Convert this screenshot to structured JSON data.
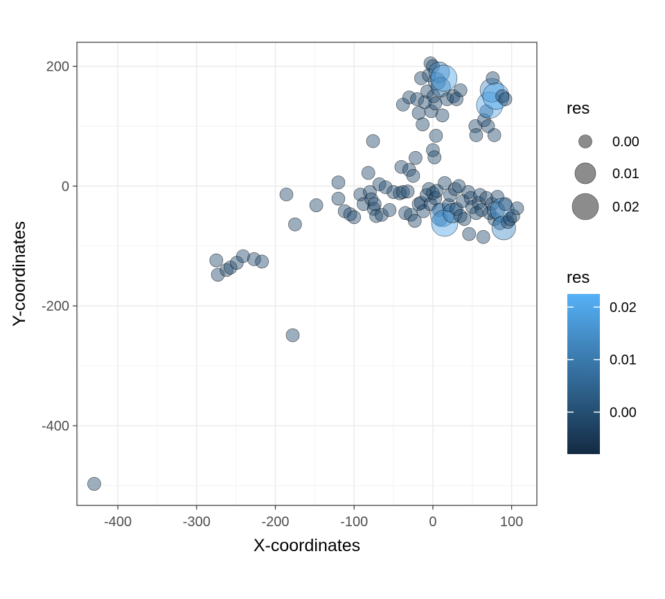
{
  "chart_data": {
    "type": "scatter",
    "title": "",
    "xlabel": "X-coordinates",
    "ylabel": "Y-coordinates",
    "xlim": [
      -452,
      132
    ],
    "ylim": [
      -533,
      240
    ],
    "x_ticks": [
      "-400",
      "-300",
      "-200",
      "-100",
      "0",
      "100"
    ],
    "y_ticks": [
      "200",
      "0",
      "-200",
      "-400"
    ],
    "grid": true,
    "theme": "bw",
    "size_legend": {
      "title": "res",
      "entries": [
        {
          "label": "0.00",
          "value": 0.0
        },
        {
          "label": "0.01",
          "value": 0.01
        },
        {
          "label": "0.02",
          "value": 0.02
        }
      ]
    },
    "color_legend": {
      "title": "res",
      "labels": [
        "0.02",
        "0.01",
        "0.00"
      ],
      "label_values": [
        0.02,
        0.01,
        0.0
      ],
      "range": [
        -0.008,
        0.0225
      ],
      "low_color": "#132B43",
      "high_color": "#56B1F7"
    },
    "point_fill_opacity": 0.45,
    "point_stroke": "#000000",
    "points": [
      {
        "x": -430,
        "y": -497,
        "res": 0.0
      },
      {
        "x": -178,
        "y": -249,
        "res": 0.0
      },
      {
        "x": -273,
        "y": -148,
        "res": 0.0
      },
      {
        "x": -275,
        "y": -124,
        "res": 0.0
      },
      {
        "x": -262,
        "y": -140,
        "res": 0.0
      },
      {
        "x": -257,
        "y": -136,
        "res": 0.0
      },
      {
        "x": -249,
        "y": -128,
        "res": 0.0
      },
      {
        "x": -241,
        "y": -117,
        "res": 0.0
      },
      {
        "x": -227,
        "y": -122,
        "res": 0.0
      },
      {
        "x": -217,
        "y": -126,
        "res": 0.0
      },
      {
        "x": -186,
        "y": -14,
        "res": 0.0
      },
      {
        "x": -175,
        "y": -64,
        "res": 0.0
      },
      {
        "x": -148,
        "y": -32,
        "res": 0.0
      },
      {
        "x": -120,
        "y": 6,
        "res": 0.0
      },
      {
        "x": -120,
        "y": -21,
        "res": 0.0
      },
      {
        "x": -112,
        "y": -42,
        "res": 0.0
      },
      {
        "x": -105,
        "y": -47,
        "res": 0.0
      },
      {
        "x": -100,
        "y": -52,
        "res": 0.0
      },
      {
        "x": -92,
        "y": -14,
        "res": 0.0
      },
      {
        "x": -88,
        "y": -30,
        "res": 0.0
      },
      {
        "x": -82,
        "y": 22,
        "res": 0.0
      },
      {
        "x": -80,
        "y": -10,
        "res": 0.0
      },
      {
        "x": -78,
        "y": -22,
        "res": 0.0
      },
      {
        "x": -76,
        "y": 75,
        "res": 0.0
      },
      {
        "x": -75,
        "y": -38,
        "res": 0.0
      },
      {
        "x": -74,
        "y": -30,
        "res": 0.0
      },
      {
        "x": -72,
        "y": -50,
        "res": 0.0
      },
      {
        "x": -68,
        "y": 3,
        "res": 0.0
      },
      {
        "x": -65,
        "y": -48,
        "res": 0.0
      },
      {
        "x": -60,
        "y": -2,
        "res": 0.0
      },
      {
        "x": -55,
        "y": -40,
        "res": 0.0
      },
      {
        "x": -50,
        "y": -10,
        "res": 0.0
      },
      {
        "x": -42,
        "y": -12,
        "res": 0.0
      },
      {
        "x": -40,
        "y": 32,
        "res": 0.0
      },
      {
        "x": -38,
        "y": -10,
        "res": 0.0
      },
      {
        "x": -35,
        "y": -45,
        "res": 0.0
      },
      {
        "x": -32,
        "y": -9,
        "res": 0.0
      },
      {
        "x": -30,
        "y": 27,
        "res": 0.0
      },
      {
        "x": -28,
        "y": -48,
        "res": 0.0
      },
      {
        "x": -25,
        "y": 17,
        "res": 0.0
      },
      {
        "x": -23,
        "y": -58,
        "res": 0.0
      },
      {
        "x": -22,
        "y": 47,
        "res": 0.0
      },
      {
        "x": -38,
        "y": 136,
        "res": 0.0
      },
      {
        "x": -30,
        "y": 148,
        "res": 0.0
      },
      {
        "x": -20,
        "y": 145,
        "res": 0.0
      },
      {
        "x": -18,
        "y": 122,
        "res": 0.0
      },
      {
        "x": -15,
        "y": 180,
        "res": 0.0
      },
      {
        "x": -13,
        "y": 103,
        "res": 0.0
      },
      {
        "x": -10,
        "y": 140,
        "res": 0.0
      },
      {
        "x": -7,
        "y": 158,
        "res": 0.0
      },
      {
        "x": -5,
        "y": 185,
        "res": 0.0
      },
      {
        "x": -3,
        "y": 205,
        "res": 0.0
      },
      {
        "x": -2,
        "y": 125,
        "res": 0.0
      },
      {
        "x": 0,
        "y": 200,
        "res": 0.0
      },
      {
        "x": 1,
        "y": 150,
        "res": 0.0
      },
      {
        "x": 3,
        "y": 138,
        "res": 0.0
      },
      {
        "x": 4,
        "y": 84,
        "res": 0.0
      },
      {
        "x": 5,
        "y": 175,
        "res": 0.005
      },
      {
        "x": 8,
        "y": 190,
        "res": 0.01
      },
      {
        "x": 10,
        "y": 165,
        "res": 0.008
      },
      {
        "x": 12,
        "y": 118,
        "res": 0.0
      },
      {
        "x": 14,
        "y": 180,
        "res": 0.02
      },
      {
        "x": 18,
        "y": 145,
        "res": 0.0
      },
      {
        "x": 0,
        "y": 60,
        "res": 0.0
      },
      {
        "x": 2,
        "y": 48,
        "res": 0.0
      },
      {
        "x": -18,
        "y": -30,
        "res": 0.0
      },
      {
        "x": -15,
        "y": -28,
        "res": 0.0
      },
      {
        "x": -12,
        "y": -42,
        "res": 0.0
      },
      {
        "x": -8,
        "y": -15,
        "res": 0.0
      },
      {
        "x": -5,
        "y": -5,
        "res": 0.0
      },
      {
        "x": -3,
        "y": -30,
        "res": 0.0
      },
      {
        "x": 0,
        "y": -12,
        "res": 0.0
      },
      {
        "x": 3,
        "y": -20,
        "res": 0.0
      },
      {
        "x": 5,
        "y": -8,
        "res": 0.0
      },
      {
        "x": 8,
        "y": -40,
        "res": 0.0
      },
      {
        "x": 10,
        "y": -55,
        "res": 0.0
      },
      {
        "x": 12,
        "y": -48,
        "res": 0.015
      },
      {
        "x": 15,
        "y": 5,
        "res": 0.0
      },
      {
        "x": 15,
        "y": -62,
        "res": 0.02
      },
      {
        "x": 20,
        "y": -32,
        "res": 0.0
      },
      {
        "x": 22,
        "y": -15,
        "res": 0.0
      },
      {
        "x": 25,
        "y": -45,
        "res": 0.008
      },
      {
        "x": 28,
        "y": -5,
        "res": 0.0
      },
      {
        "x": 30,
        "y": -38,
        "res": 0.0
      },
      {
        "x": 33,
        "y": 0,
        "res": 0.0
      },
      {
        "x": 35,
        "y": -50,
        "res": 0.0
      },
      {
        "x": 38,
        "y": -25,
        "res": 0.0
      },
      {
        "x": 40,
        "y": -55,
        "res": 0.0
      },
      {
        "x": 45,
        "y": -10,
        "res": 0.0
      },
      {
        "x": 46,
        "y": -80,
        "res": 0.0
      },
      {
        "x": 48,
        "y": -20,
        "res": 0.0
      },
      {
        "x": 50,
        "y": -35,
        "res": 0.0
      },
      {
        "x": 55,
        "y": -45,
        "res": 0.0
      },
      {
        "x": 58,
        "y": -28,
        "res": 0.0
      },
      {
        "x": 60,
        "y": -15,
        "res": 0.0
      },
      {
        "x": 62,
        "y": -40,
        "res": 0.0
      },
      {
        "x": 64,
        "y": -85,
        "res": 0.0
      },
      {
        "x": 68,
        "y": -20,
        "res": 0.0
      },
      {
        "x": 72,
        "y": -45,
        "res": 0.0
      },
      {
        "x": 75,
        "y": -30,
        "res": 0.0
      },
      {
        "x": 78,
        "y": -55,
        "res": 0.0
      },
      {
        "x": 80,
        "y": -40,
        "res": 0.005
      },
      {
        "x": 82,
        "y": -18,
        "res": 0.0
      },
      {
        "x": 85,
        "y": -62,
        "res": 0.0
      },
      {
        "x": 88,
        "y": -40,
        "res": 0.015
      },
      {
        "x": 90,
        "y": -70,
        "res": 0.015
      },
      {
        "x": 92,
        "y": -30,
        "res": 0.0
      },
      {
        "x": 95,
        "y": -60,
        "res": 0.0
      },
      {
        "x": 98,
        "y": -55,
        "res": 0.0
      },
      {
        "x": 102,
        "y": -50,
        "res": 0.0
      },
      {
        "x": 107,
        "y": -37,
        "res": 0.0
      },
      {
        "x": 26,
        "y": 150,
        "res": 0.0
      },
      {
        "x": 35,
        "y": 160,
        "res": 0.0
      },
      {
        "x": 30,
        "y": 145,
        "res": 0.0
      },
      {
        "x": 54,
        "y": 100,
        "res": 0.0
      },
      {
        "x": 55,
        "y": 85,
        "res": 0.0
      },
      {
        "x": 65,
        "y": 110,
        "res": 0.0
      },
      {
        "x": 68,
        "y": 125,
        "res": 0.0
      },
      {
        "x": 70,
        "y": 100,
        "res": 0.0
      },
      {
        "x": 72,
        "y": 135,
        "res": 0.02
      },
      {
        "x": 75,
        "y": 160,
        "res": 0.015
      },
      {
        "x": 76,
        "y": 180,
        "res": 0.0
      },
      {
        "x": 78,
        "y": 85,
        "res": 0.0
      },
      {
        "x": 80,
        "y": 150,
        "res": 0.02
      },
      {
        "x": 88,
        "y": 150,
        "res": 0.0
      },
      {
        "x": 92,
        "y": 145,
        "res": 0.0
      }
    ]
  }
}
